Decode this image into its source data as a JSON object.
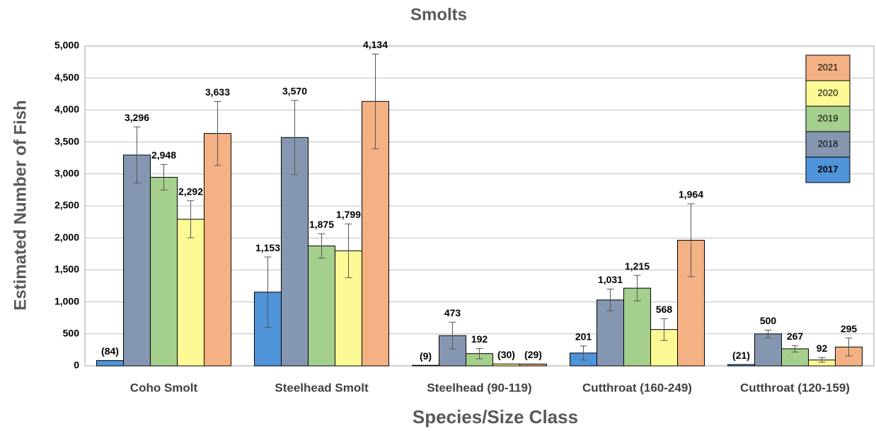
{
  "chart_data": {
    "type": "bar",
    "title": "Smolts",
    "x_label": "Species/Size Class",
    "y_label": "Estimated Number of Fish",
    "categories": [
      "Coho Smolt",
      "Steelhead Smolt",
      "Steelhead (90-119)",
      "Cutthroat (160-249)",
      "Cutthroat (120-159)"
    ],
    "series": [
      {
        "name": "2017",
        "color": "#4f93d8",
        "values": [
          84,
          1153,
          9,
          201,
          21
        ],
        "value_labels": [
          "(84)",
          "1,153",
          "(9)",
          "201",
          "(21)"
        ],
        "errors": [
          null,
          550,
          null,
          110,
          null
        ]
      },
      {
        "name": "2018",
        "color": "#8597b0",
        "values": [
          3296,
          3570,
          473,
          1031,
          500
        ],
        "value_labels": [
          "3,296",
          "3,570",
          "473",
          "1,031",
          "500"
        ],
        "errors": [
          440,
          580,
          210,
          170,
          60
        ]
      },
      {
        "name": "2019",
        "color": "#a5cf8c",
        "values": [
          2948,
          1875,
          192,
          1215,
          267
        ],
        "value_labels": [
          "2,948",
          "1,875",
          "192",
          "1,215",
          "267"
        ],
        "errors": [
          200,
          190,
          80,
          200,
          50
        ]
      },
      {
        "name": "2020",
        "color": "#fdfa96",
        "values": [
          2292,
          1799,
          30,
          568,
          92
        ],
        "value_labels": [
          "2,292",
          "1,799",
          "(30)",
          "568",
          "92"
        ],
        "errors": [
          290,
          420,
          null,
          170,
          35
        ]
      },
      {
        "name": "2021",
        "color": "#f4b183",
        "values": [
          3633,
          4134,
          29,
          1964,
          295
        ],
        "value_labels": [
          "3,633",
          "4,134",
          "(29)",
          "1,964",
          "295"
        ],
        "errors": [
          500,
          740,
          null,
          570,
          140
        ]
      }
    ],
    "ylim": [
      0,
      5000
    ],
    "yticks": [
      0,
      500,
      {
        "value": 1000,
        "label": "1,000"
      },
      {
        "value": 1500,
        "label": "1,500"
      },
      {
        "value": 2000,
        "label": "2,000"
      },
      {
        "value": 2500,
        "label": "2,500"
      },
      {
        "value": 3000,
        "label": "3,000"
      },
      {
        "value": 3500,
        "label": "3,500"
      },
      {
        "value": 4000,
        "label": "4,000"
      },
      {
        "value": 4500,
        "label": "4,500"
      },
      {
        "value": 5000,
        "label": "5,000"
      }
    ],
    "grid": true,
    "legend": "upper right"
  }
}
